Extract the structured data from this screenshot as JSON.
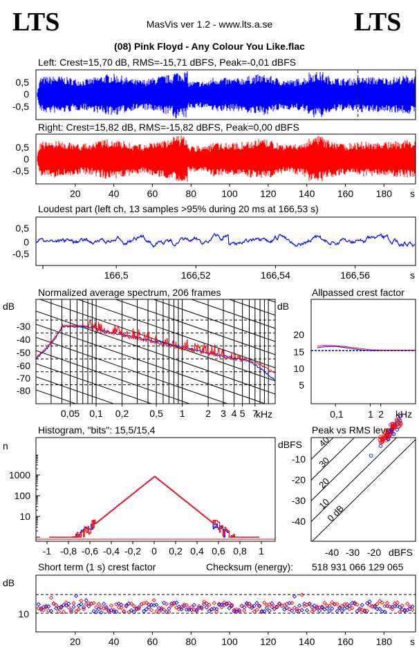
{
  "header": {
    "logo_left": "LTS",
    "logo_right": "LTS",
    "app_title": "MasVis ver 1.2 - www.lts.a.se",
    "file_title": "(08) Pink Floyd - Any Colour You Like.flac"
  },
  "colors": {
    "left": "#0000ff",
    "right": "#ff0000"
  },
  "chart_data": [
    {
      "type": "line",
      "id": "left_waveform",
      "title": "Left: Crest=15,70 dB, RMS=-15,71 dBFS, Peak=-0,01 dBFS",
      "y_ticks": [
        "0,5",
        "0",
        "-0,5"
      ],
      "ylim": [
        -1,
        1
      ],
      "marker_time_s": 166.53
    },
    {
      "type": "line",
      "id": "right_waveform",
      "title": "Right: Crest=15,82 dB, RMS=-15,82 dBFS, Peak=0,00 dBFS",
      "y_ticks": [
        "0,5",
        "0",
        "-0,5"
      ],
      "ylim": [
        -1,
        1
      ],
      "x_ticks": [
        "20",
        "40",
        "60",
        "80",
        "100",
        "120",
        "140",
        "160",
        "180"
      ],
      "x_unit": "s",
      "xlim": [
        0,
        196
      ]
    },
    {
      "type": "line",
      "id": "loudest_part",
      "title": "Loudest part (left  ch, 13 samples >95% during 20 ms at 166,53 s)",
      "y_ticks": [
        "0,5",
        "0",
        "-0,5"
      ],
      "x_ticks": [
        "166,5",
        "166,52",
        "166,54",
        "166,56"
      ],
      "x_unit": "s",
      "xlim": [
        166.48,
        166.575
      ]
    },
    {
      "type": "line",
      "id": "spectrum",
      "title": "Normalized average spectrum, 206 frames",
      "ylabel": "dB",
      "y_ticks": [
        "-30",
        "-40",
        "-50",
        "-60",
        "-70",
        "-80"
      ],
      "x_ticks": [
        "0,05",
        "0,1",
        "0,2",
        "0,5",
        "1",
        "2",
        "3",
        "4",
        "5",
        "7"
      ],
      "x_unit": "kHz",
      "log_x": true
    },
    {
      "type": "line",
      "id": "allpassed_crest",
      "title": "Allpassed crest factor",
      "ylabel": "dB",
      "y_ticks": [
        "20",
        "15",
        "10",
        "5"
      ],
      "x_ticks": [
        "0,1",
        "1",
        "2"
      ],
      "x_unit": "kHz",
      "reference_db": 15.76,
      "series": [
        {
          "color": "left",
          "x": [
            0.03,
            0.05,
            0.1,
            0.2,
            0.5,
            1,
            2,
            5,
            10,
            20
          ],
          "values": [
            16.6,
            16.9,
            17.0,
            16.6,
            16.0,
            15.7,
            15.8,
            15.8,
            15.8,
            15.8
          ]
        },
        {
          "color": "right",
          "x": [
            0.03,
            0.05,
            0.1,
            0.2,
            0.5,
            1,
            2,
            5,
            10,
            20
          ],
          "values": [
            17.1,
            17.3,
            17.2,
            16.9,
            16.4,
            16.0,
            15.9,
            15.9,
            15.9,
            15.9
          ]
        }
      ]
    },
    {
      "type": "line",
      "id": "histogram",
      "title": "Histogram, \"bits\": 15,5/15,4",
      "ylabel": "n",
      "y_ticks": [
        "1000",
        "100",
        "10"
      ],
      "x_ticks": [
        "-1",
        "-0,8",
        "-0,6",
        "-0,4",
        "-0,2",
        "0",
        "0,2",
        "0,4",
        "0,6",
        "0,8",
        "1"
      ],
      "log_y": true,
      "peak_count": 850
    },
    {
      "type": "scatter",
      "id": "peak_vs_rms",
      "title": "Peak vs RMS level",
      "ylabel": "dBFS",
      "y_ticks": [
        "-10",
        "-20",
        "-30",
        "-40"
      ],
      "x_ticks": [
        "-40",
        "-30",
        "-20"
      ],
      "x_unit": "dBFS",
      "diagonal_labels": [
        "40",
        "30",
        "20",
        "10",
        "0 dB"
      ]
    },
    {
      "type": "scatter",
      "id": "short_term_crest",
      "title": "Short term (1 s) crest factor",
      "checksum_label": "Checksum (energy):",
      "checksum_value": "518 931 066 129 065",
      "ylabel": "dB",
      "y_ticks": [
        "10"
      ],
      "x_ticks": [
        "20",
        "40",
        "60",
        "80",
        "100",
        "120",
        "140",
        "160",
        "180"
      ],
      "x_unit": "s",
      "xlim": [
        0,
        196
      ],
      "typical_db": 11.5
    }
  ]
}
